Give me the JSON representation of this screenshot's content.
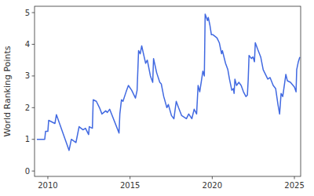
{
  "chart_data": {
    "type": "line",
    "y_label": "World Ranking Points",
    "x": [
      2009.33,
      2009.81,
      2009.86,
      2010.0,
      2010.05,
      2010.43,
      2010.52,
      2011.29,
      2011.43,
      2011.71,
      2011.9,
      2012.14,
      2012.29,
      2012.48,
      2012.52,
      2012.71,
      2012.76,
      2012.95,
      2013.14,
      2013.29,
      2013.52,
      2013.62,
      2013.76,
      2014.33,
      2014.38,
      2014.48,
      2014.57,
      2014.76,
      2014.9,
      2015.1,
      2015.33,
      2015.43,
      2015.52,
      2015.62,
      2015.71,
      2015.86,
      2015.95,
      2016.05,
      2016.24,
      2016.38,
      2016.43,
      2016.62,
      2016.81,
      2016.9,
      2017.05,
      2017.24,
      2017.33,
      2017.52,
      2017.67,
      2017.81,
      2017.95,
      2018.14,
      2018.43,
      2018.57,
      2018.76,
      2018.9,
      2019.05,
      2019.14,
      2019.24,
      2019.33,
      2019.43,
      2019.52,
      2019.57,
      2019.71,
      2019.76,
      2019.86,
      2019.95,
      2020.05,
      2020.29,
      2020.43,
      2020.57,
      2020.62,
      2020.81,
      2020.95,
      2021.05,
      2021.19,
      2021.29,
      2021.33,
      2021.38,
      2021.48,
      2021.62,
      2021.76,
      2021.9,
      2022.05,
      2022.14,
      2022.19,
      2022.24,
      2022.38,
      2022.48,
      2022.57,
      2022.62,
      2022.76,
      2022.95,
      2023.1,
      2023.24,
      2023.38,
      2023.52,
      2023.71,
      2023.86,
      2024.0,
      2024.1,
      2024.19,
      2024.29,
      2024.48,
      2024.57,
      2024.76,
      2025.0,
      2025.1,
      2025.14,
      2025.24,
      2025.33
    ],
    "series": [
      {
        "name": "World Ranking Points",
        "color": "#4169e1",
        "values": [
          1.0,
          1.0,
          1.25,
          1.25,
          1.6,
          1.5,
          1.78,
          0.65,
          1.0,
          0.9,
          1.4,
          1.3,
          1.35,
          1.15,
          1.4,
          1.35,
          2.25,
          2.2,
          2.0,
          1.8,
          1.9,
          1.85,
          1.95,
          1.2,
          1.8,
          2.25,
          2.2,
          2.5,
          2.7,
          2.55,
          2.3,
          2.55,
          3.8,
          3.7,
          3.95,
          3.6,
          3.4,
          3.5,
          3.0,
          2.8,
          3.55,
          3.1,
          2.8,
          2.75,
          2.35,
          2.0,
          2.1,
          1.75,
          1.65,
          2.2,
          2.0,
          1.75,
          1.65,
          1.8,
          1.65,
          1.95,
          1.8,
          2.7,
          2.5,
          2.8,
          3.15,
          3.0,
          4.95,
          4.75,
          4.85,
          4.6,
          4.3,
          4.3,
          4.2,
          4.05,
          3.7,
          3.8,
          3.4,
          3.2,
          2.9,
          2.55,
          2.6,
          2.45,
          2.9,
          2.7,
          2.8,
          2.7,
          2.5,
          2.35,
          2.4,
          2.9,
          3.65,
          3.55,
          3.6,
          3.45,
          4.05,
          3.85,
          3.6,
          3.2,
          3.05,
          2.9,
          2.95,
          2.7,
          2.6,
          2.1,
          1.8,
          2.45,
          2.35,
          3.05,
          2.85,
          2.8,
          2.65,
          2.5,
          3.2,
          3.45,
          3.6
        ]
      }
    ],
    "xlim": [
      2009.19,
      2025.38
    ],
    "xticks": [
      2010,
      2015,
      2020,
      2025
    ],
    "ylim": [
      -0.17,
      5.2
    ],
    "yticks": [
      0,
      1,
      2,
      3,
      4,
      5
    ],
    "grid": false
  }
}
